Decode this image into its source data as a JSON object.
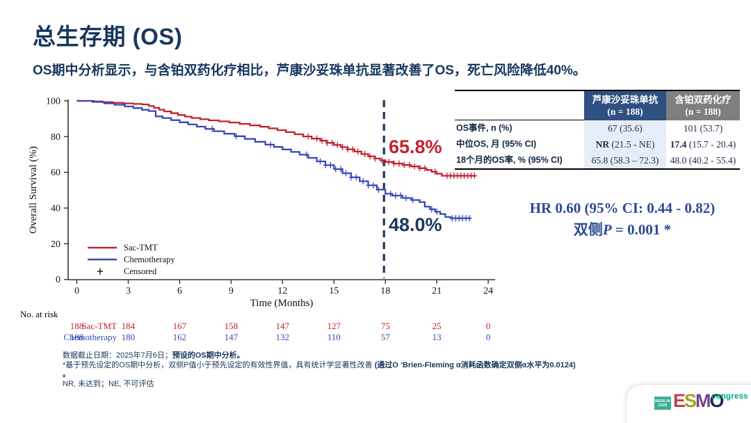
{
  "slide": {
    "title": "总生存期 (OS)",
    "subtitle": "OS期中分析显示，与含铂双药化疗相比，芦康沙妥珠单抗显著改善了OS，死亡风险降低40%。"
  },
  "summary_table": {
    "col_headers": [
      {
        "name": "芦康沙妥珠单抗",
        "n": "(n = 188)",
        "bg": "#2F5181"
      },
      {
        "name": "含铂双药化疗",
        "n": "(n = 188)",
        "bg": "#7F7F7F"
      }
    ],
    "col1_bg": "#E7EDF7",
    "rows": [
      {
        "label": "OS事件, n (%)",
        "c1_bold": "",
        "c1": "67 (35.6)",
        "c2_bold": "",
        "c2": "101 (53.7)"
      },
      {
        "label": "中位OS, 月 (95% CI)",
        "c1_bold": "NR",
        "c1": " (21.5 - NE)",
        "c2_bold": "17.4",
        "c2": " (15.7 - 20.4)"
      },
      {
        "label": "18个月的OS率, % (95% CI)",
        "c1_bold": "",
        "c1": "65.8 (58.3 – 72.3)",
        "c2_bold": "",
        "c2": "48.0 (40.2 - 55.4)"
      }
    ]
  },
  "stats": {
    "hr_line": "HR 0.60 (95% CI: 0.44 - 0.82)",
    "p_prefix": "双侧",
    "p_italic": "P",
    "p_rest": " = 0.001 *"
  },
  "footnotes": {
    "line1_normal": "数据截止日期：2025年7月6日；",
    "line1_bold": "预设的OS期中分析。",
    "line2_normal": "*基于预先设定的OS期中分析，双侧P值小于预先设定的有效性界值，具有统计学显著性改善 ",
    "line2_bold": "(通过O ‘Brien-Fleming α消耗函数确定双侧α水平为0.0124) 。",
    "line3": "NR, 未达到；NE, 不可评估"
  },
  "logo": {
    "venue": "BERLIN",
    "year": "2025",
    "letters": [
      "E",
      "S",
      "M",
      "O"
    ],
    "letter_colors": [
      "#C4404E",
      "#9EA61F",
      "#7A3E8E",
      "#16295B"
    ],
    "suffix": "congress"
  },
  "colors": {
    "accent_navy": "#17375D",
    "hr_blue": "#2C4A96",
    "red": "#C4202E",
    "blue": "#3848B4",
    "axis": "#333333",
    "esmo_teal": "#3BAE93",
    "esmo_green": "#00A887"
  },
  "chart_data": {
    "type": "line",
    "subtype": "kaplan-meier-step",
    "title": "",
    "xlabel": "Time (Months)",
    "ylabel": "Overall Survival (%)",
    "xlim": [
      0,
      24
    ],
    "xticks": [
      0,
      3,
      6,
      9,
      12,
      15,
      18,
      21,
      24
    ],
    "ylim": [
      0,
      100
    ],
    "yticks": [
      0,
      20,
      40,
      60,
      80,
      100
    ],
    "grid": false,
    "reference_line_x": 18,
    "annotations": [
      {
        "text": "65.8%",
        "x": 18.2,
        "y": 72,
        "color": "#C4202E"
      },
      {
        "text": "48.0%",
        "x": 18.2,
        "y": 29,
        "color": "#17375D"
      }
    ],
    "legend": {
      "position": "lower-left",
      "entries": [
        {
          "label": "Sac-TMT",
          "color": "#C4202E",
          "type": "line"
        },
        {
          "label": "Chemotherapy",
          "color": "#3848B4",
          "type": "line"
        },
        {
          "label": "Censored",
          "color": "#111111",
          "type": "plus"
        }
      ]
    },
    "series": [
      {
        "name": "Sac-TMT",
        "color": "#C4202E",
        "steps": [
          [
            0,
            100
          ],
          [
            1.0,
            99.7
          ],
          [
            1.5,
            99.3
          ],
          [
            2.1,
            98.9
          ],
          [
            2.7,
            98.6
          ],
          [
            3.3,
            98.3
          ],
          [
            3.8,
            98.0
          ],
          [
            4.2,
            97.1
          ],
          [
            4.5,
            96.1
          ],
          [
            4.8,
            95.1
          ],
          [
            5.1,
            94.1
          ],
          [
            5.5,
            93.1
          ],
          [
            5.9,
            92.1
          ],
          [
            6.3,
            91.2
          ],
          [
            6.7,
            90.4
          ],
          [
            7.2,
            89.7
          ],
          [
            7.7,
            89.1
          ],
          [
            8.3,
            88.5
          ],
          [
            8.9,
            87.9
          ],
          [
            9.5,
            87.1
          ],
          [
            10.1,
            86.3
          ],
          [
            10.7,
            85.5
          ],
          [
            11.2,
            84.6
          ],
          [
            11.7,
            83.6
          ],
          [
            12.2,
            82.5
          ],
          [
            12.7,
            81.3
          ],
          [
            13.2,
            80.1
          ],
          [
            13.7,
            78.9
          ],
          [
            14.2,
            77.7
          ],
          [
            14.6,
            76.5
          ],
          [
            15.0,
            75.3
          ],
          [
            15.4,
            74.1
          ],
          [
            15.8,
            72.9
          ],
          [
            16.2,
            71.6
          ],
          [
            16.6,
            70.2
          ],
          [
            17.0,
            68.9
          ],
          [
            17.4,
            67.7
          ],
          [
            17.7,
            66.7
          ],
          [
            18.0,
            65.8
          ],
          [
            18.5,
            64.9
          ],
          [
            19.0,
            64.1
          ],
          [
            19.5,
            63.3
          ],
          [
            20.0,
            62.3
          ],
          [
            20.4,
            61.3
          ],
          [
            20.7,
            60.3
          ],
          [
            21.0,
            59.2
          ],
          [
            21.3,
            58.1
          ],
          [
            23.3,
            58.1
          ]
        ],
        "censor_months": [
          13.5,
          14.0,
          14.3,
          14.6,
          14.9,
          15.2,
          15.5,
          15.8,
          16.1,
          16.4,
          16.8,
          17.1,
          17.4,
          17.8,
          18.2,
          18.5,
          18.8,
          19.1,
          19.4,
          19.7,
          20.0,
          20.3,
          20.9,
          21.6,
          21.8,
          22.0,
          22.2,
          22.4,
          22.6,
          22.8,
          23.0,
          23.2
        ]
      },
      {
        "name": "Chemotherapy",
        "color": "#3848B4",
        "steps": [
          [
            0,
            100
          ],
          [
            0.9,
            99.4
          ],
          [
            1.6,
            98.6
          ],
          [
            2.2,
            97.8
          ],
          [
            2.8,
            96.9
          ],
          [
            3.3,
            96.0
          ],
          [
            3.8,
            95.0
          ],
          [
            4.2,
            94.3
          ],
          [
            4.6,
            91.3
          ],
          [
            5.0,
            90.4
          ],
          [
            5.5,
            89.2
          ],
          [
            6.0,
            88.0
          ],
          [
            6.5,
            86.8
          ],
          [
            7.0,
            85.6
          ],
          [
            7.5,
            84.3
          ],
          [
            8.0,
            83.0
          ],
          [
            8.6,
            81.6
          ],
          [
            9.2,
            80.2
          ],
          [
            9.8,
            78.7
          ],
          [
            10.4,
            77.1
          ],
          [
            11.0,
            75.5
          ],
          [
            11.5,
            74.2
          ],
          [
            12.0,
            72.8
          ],
          [
            12.5,
            71.4
          ],
          [
            13.0,
            69.9
          ],
          [
            13.5,
            68.1
          ],
          [
            14.0,
            66.1
          ],
          [
            14.5,
            64.0
          ],
          [
            15.0,
            61.8
          ],
          [
            15.5,
            59.5
          ],
          [
            16.0,
            57.2
          ],
          [
            16.5,
            55.0
          ],
          [
            17.0,
            52.7
          ],
          [
            17.5,
            50.3
          ],
          [
            18.0,
            48.0
          ],
          [
            18.4,
            47.0
          ],
          [
            19.0,
            45.6
          ],
          [
            19.5,
            44.5
          ],
          [
            20.0,
            43.3
          ],
          [
            20.3,
            40.8
          ],
          [
            20.6,
            39.3
          ],
          [
            20.9,
            37.9
          ],
          [
            21.2,
            36.6
          ],
          [
            21.5,
            35.0
          ],
          [
            21.8,
            34.3
          ],
          [
            23.0,
            34.3
          ]
        ],
        "censor_months": [
          7.9,
          9.3,
          11.3,
          13.4,
          14.2,
          14.5,
          14.8,
          15.1,
          15.4,
          15.7,
          16.0,
          16.3,
          16.7,
          17.0,
          17.3,
          17.6,
          18.3,
          18.6,
          18.9,
          19.2,
          19.6,
          20.7,
          21.0,
          21.9,
          22.1,
          22.3,
          22.5,
          22.7,
          22.9
        ]
      }
    ],
    "risk_table": {
      "heading": "No. at risk",
      "months": [
        0,
        3,
        6,
        9,
        12,
        15,
        18,
        21,
        24
      ],
      "rows": [
        {
          "name": "Sac-TMT",
          "color": "#C4202E",
          "values": [
            188,
            184,
            167,
            158,
            147,
            127,
            75,
            25,
            0
          ]
        },
        {
          "name": "Chemotherapy",
          "color": "#3848B4",
          "values": [
            188,
            180,
            162,
            147,
            132,
            110,
            57,
            13,
            0
          ]
        }
      ]
    }
  }
}
